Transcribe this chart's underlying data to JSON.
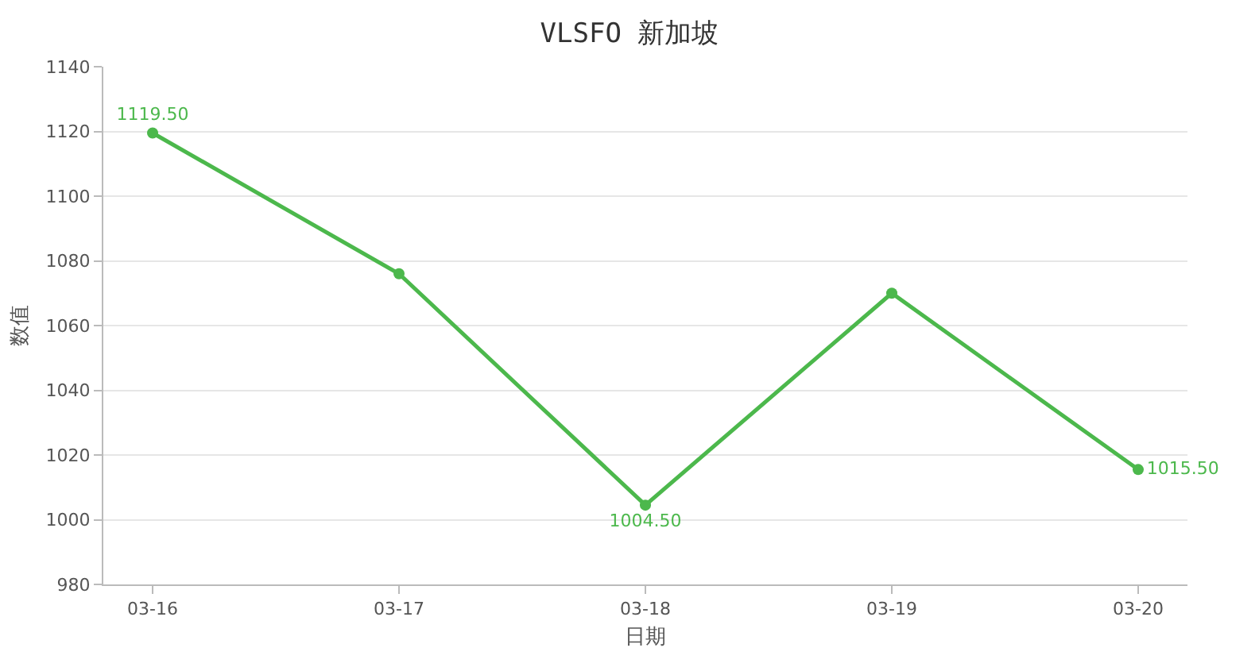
{
  "chart_data": {
    "type": "line",
    "title": "VLSFO 新加坡",
    "xlabel": "日期",
    "ylabel": "数值",
    "categories": [
      "03-16",
      "03-17",
      "03-18",
      "03-19",
      "03-20"
    ],
    "series": [
      {
        "color": "#4cb84c",
        "values": [
          1119.5,
          1076,
          1004.5,
          1070,
          1015.5
        ],
        "value_labels": [
          "1119.50",
          null,
          "1004.50",
          null,
          "1015.50"
        ]
      }
    ],
    "ylim": [
      980,
      1140
    ],
    "yticks": [
      980,
      1000,
      1020,
      1040,
      1060,
      1080,
      1100,
      1120,
      1140
    ],
    "grid": "y",
    "marker": "circle",
    "line_style": "solid"
  }
}
